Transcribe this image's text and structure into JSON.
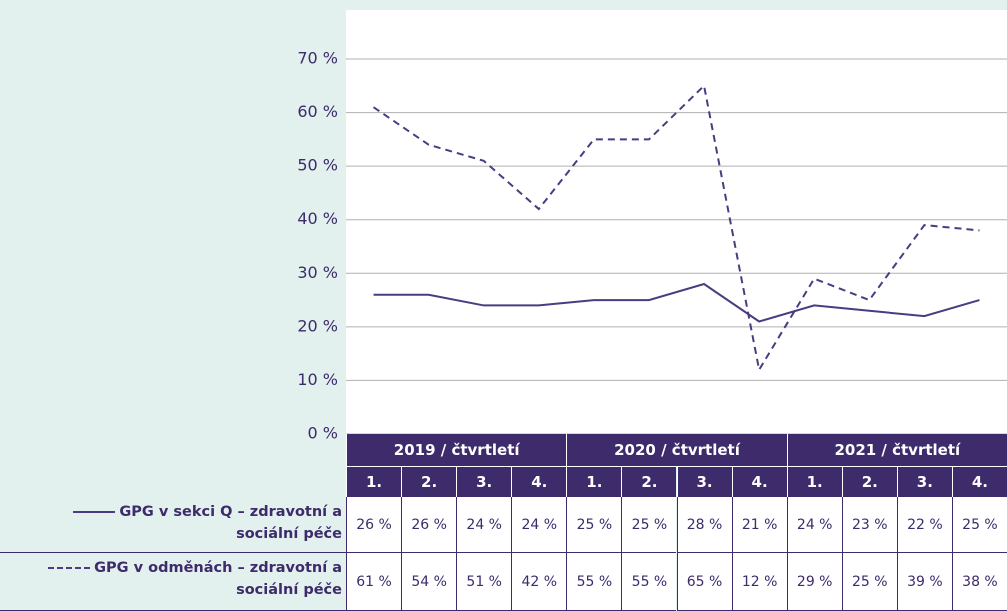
{
  "chart_data": {
    "type": "line",
    "category_groups": [
      "2019 / čtvrtletí",
      "2020 / čtvrtletí",
      "2021 / čtvrtletí"
    ],
    "categories": [
      "1.",
      "2.",
      "3.",
      "4.",
      "1.",
      "2.",
      "3.",
      "4.",
      "1.",
      "2.",
      "3.",
      "4."
    ],
    "series": [
      {
        "name": "GPG v sekci Q – zdravotní a sociální péče",
        "color": "#4b3b80",
        "dash": "solid",
        "values": [
          26,
          26,
          24,
          24,
          25,
          25,
          28,
          21,
          24,
          23,
          22,
          25
        ],
        "value_labels": [
          "26 %",
          "26 %",
          "24 %",
          "24 %",
          "25 %",
          "25 %",
          "28 %",
          "21 %",
          "24 %",
          "23 %",
          "22 %",
          "25 %"
        ]
      },
      {
        "name": "GPG v odměnách – zdravotní a sociální péče",
        "color": "#4b3b80",
        "dash": "dashed",
        "values": [
          61,
          54,
          51,
          42,
          55,
          55,
          65,
          12,
          29,
          25,
          39,
          38
        ],
        "value_labels": [
          "61 %",
          "54 %",
          "51 %",
          "42 %",
          "55 %",
          "55 %",
          "65 %",
          "12 %",
          "29 %",
          "25 %",
          "39 %",
          "38 %"
        ]
      }
    ],
    "ylim": [
      0,
      70
    ],
    "yticks": [
      {
        "value": 0,
        "label": "0 %"
      },
      {
        "value": 10,
        "label": "10 %"
      },
      {
        "value": 20,
        "label": "20 %"
      },
      {
        "value": 30,
        "label": "30 %"
      },
      {
        "value": 40,
        "label": "40 %"
      },
      {
        "value": 50,
        "label": "50 %"
      },
      {
        "value": 60,
        "label": "60 %"
      },
      {
        "value": 70,
        "label": "70 %"
      }
    ],
    "grid": true
  }
}
